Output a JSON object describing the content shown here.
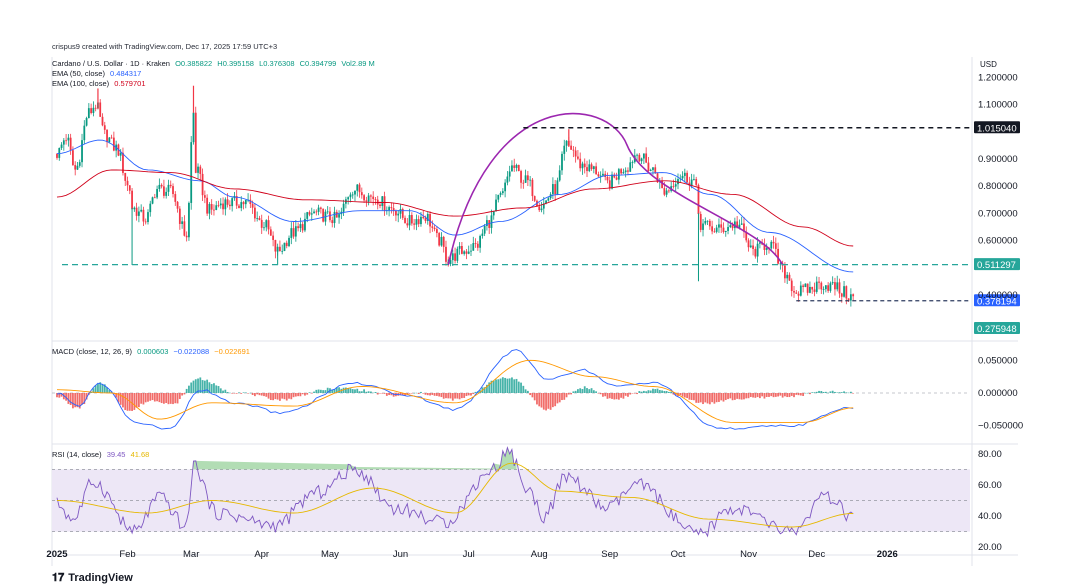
{
  "attribution": "crispus9 created with TradingView.com, Dec 17, 2025 17:59 UTC+3",
  "symbol_line": {
    "name": "Cardano / U.S. Dollar · 1D · Kraken",
    "open": "O0.385822",
    "high": "H0.395158",
    "low": "L0.376308",
    "close": "C0.394799",
    "volume": "Vol2.89 M"
  },
  "ema50": {
    "label": "EMA (50, close)",
    "value": "0.484317"
  },
  "ema100": {
    "label": "EMA (100, close)",
    "value": "0.579701"
  },
  "macd_legend": {
    "label": "MACD (close, 12, 26, 9)",
    "hist": "0.000603",
    "macd": "−0.022088",
    "signal": "−0.022691"
  },
  "rsi_legend": {
    "label": "RSI (14, close)",
    "rsi": "39.45",
    "ma": "41.68"
  },
  "logo_text": "TradingView",
  "colors": {
    "up": "#089981",
    "down": "#f23645",
    "ema50": "#2962ff",
    "ema100": "#d0021b",
    "arc": "#9c27b0",
    "dash_dark": "#131722",
    "dash_teal": "#26a69a",
    "macd": "#2962ff",
    "signal": "#ff9800",
    "rsi": "#7e57c2",
    "rsi_ma": "#e6b800",
    "rsi_band": "#ede7f6"
  },
  "chart_data": [
    {
      "type": "candlestick",
      "currency": "USD",
      "interval": "1D",
      "exchange": "Kraken",
      "x_labels": [
        "2025",
        "Feb",
        "Mar",
        "Apr",
        "May",
        "Jun",
        "Jul",
        "Aug",
        "Sep",
        "Oct",
        "Nov",
        "Dec",
        "2026"
      ],
      "ylim": [
        0.3,
        1.25
      ],
      "y_ticks": [
        "1.200000",
        "1.100000",
        "1.000000",
        "0.900000",
        "0.800000",
        "0.700000",
        "0.600000",
        "0.500000",
        "0.400000",
        "0.300000"
      ],
      "close_anchors": [
        {
          "date": "2025-01-01",
          "close": 0.92
        },
        {
          "date": "2025-01-05",
          "close": 0.98
        },
        {
          "date": "2025-01-09",
          "close": 0.86
        },
        {
          "date": "2025-01-15",
          "close": 1.07
        },
        {
          "date": "2025-01-18",
          "close": 1.1
        },
        {
          "date": "2025-01-22",
          "close": 0.99
        },
        {
          "date": "2025-01-27",
          "close": 0.94
        },
        {
          "date": "2025-02-02",
          "close": 0.79
        },
        {
          "date": "2025-02-03",
          "close": 0.72
        },
        {
          "date": "2025-02-09",
          "close": 0.68
        },
        {
          "date": "2025-02-14",
          "close": 0.79
        },
        {
          "date": "2025-02-20",
          "close": 0.78
        },
        {
          "date": "2025-02-27",
          "close": 0.62
        },
        {
          "date": "2025-03-02",
          "close": 1.07
        },
        {
          "date": "2025-03-03",
          "close": 0.86
        },
        {
          "date": "2025-03-09",
          "close": 0.71
        },
        {
          "date": "2025-03-15",
          "close": 0.74
        },
        {
          "date": "2025-03-25",
          "close": 0.74
        },
        {
          "date": "2025-04-02",
          "close": 0.66
        },
        {
          "date": "2025-04-08",
          "close": 0.56
        },
        {
          "date": "2025-04-15",
          "close": 0.63
        },
        {
          "date": "2025-04-24",
          "close": 0.7
        },
        {
          "date": "2025-05-04",
          "close": 0.68
        },
        {
          "date": "2025-05-11",
          "close": 0.79
        },
        {
          "date": "2025-05-20",
          "close": 0.76
        },
        {
          "date": "2025-05-28",
          "close": 0.72
        },
        {
          "date": "2025-06-05",
          "close": 0.67
        },
        {
          "date": "2025-06-12",
          "close": 0.69
        },
        {
          "date": "2025-06-18",
          "close": 0.6
        },
        {
          "date": "2025-06-22",
          "close": 0.53
        },
        {
          "date": "2025-06-28",
          "close": 0.56
        },
        {
          "date": "2025-07-04",
          "close": 0.58
        },
        {
          "date": "2025-07-10",
          "close": 0.67
        },
        {
          "date": "2025-07-15",
          "close": 0.76
        },
        {
          "date": "2025-07-20",
          "close": 0.87
        },
        {
          "date": "2025-07-26",
          "close": 0.82
        },
        {
          "date": "2025-08-02",
          "close": 0.73
        },
        {
          "date": "2025-08-08",
          "close": 0.79
        },
        {
          "date": "2025-08-13",
          "close": 0.95
        },
        {
          "date": "2025-08-15",
          "close": 0.94
        },
        {
          "date": "2025-08-19",
          "close": 0.88
        },
        {
          "date": "2025-08-25",
          "close": 0.86
        },
        {
          "date": "2025-08-31",
          "close": 0.81
        },
        {
          "date": "2025-09-08",
          "close": 0.87
        },
        {
          "date": "2025-09-13",
          "close": 0.92
        },
        {
          "date": "2025-09-20",
          "close": 0.86
        },
        {
          "date": "2025-09-25",
          "close": 0.78
        },
        {
          "date": "2025-10-02",
          "close": 0.84
        },
        {
          "date": "2025-10-08",
          "close": 0.82
        },
        {
          "date": "2025-10-11",
          "close": 0.66
        },
        {
          "date": "2025-10-18",
          "close": 0.64
        },
        {
          "date": "2025-10-27",
          "close": 0.66
        },
        {
          "date": "2025-11-03",
          "close": 0.56
        },
        {
          "date": "2025-11-10",
          "close": 0.59
        },
        {
          "date": "2025-11-17",
          "close": 0.48
        },
        {
          "date": "2025-11-22",
          "close": 0.41
        },
        {
          "date": "2025-11-28",
          "close": 0.42
        },
        {
          "date": "2025-12-03",
          "close": 0.44
        },
        {
          "date": "2025-12-09",
          "close": 0.43
        },
        {
          "date": "2025-12-12",
          "close": 0.41
        },
        {
          "date": "2025-12-17",
          "close": 0.39
        }
      ],
      "wick_spikes": [
        {
          "date": "2025-02-03",
          "low": 0.51
        },
        {
          "date": "2025-03-02",
          "high": 1.17
        },
        {
          "date": "2025-01-19",
          "high": 1.16
        },
        {
          "date": "2025-04-08",
          "low": 0.51
        },
        {
          "date": "2025-06-22",
          "low": 0.51
        },
        {
          "date": "2025-10-10",
          "low": 0.45
        },
        {
          "date": "2025-08-14",
          "high": 1.01
        }
      ],
      "ema50_anchors": [
        {
          "date": "2025-01-01",
          "value": 0.92
        },
        {
          "date": "2025-01-20",
          "value": 0.97
        },
        {
          "date": "2025-02-10",
          "value": 0.86
        },
        {
          "date": "2025-03-05",
          "value": 0.82
        },
        {
          "date": "2025-03-20",
          "value": 0.76
        },
        {
          "date": "2025-04-15",
          "value": 0.67
        },
        {
          "date": "2025-05-15",
          "value": 0.71
        },
        {
          "date": "2025-06-05",
          "value": 0.71
        },
        {
          "date": "2025-06-25",
          "value": 0.62
        },
        {
          "date": "2025-07-15",
          "value": 0.67
        },
        {
          "date": "2025-08-10",
          "value": 0.77
        },
        {
          "date": "2025-09-01",
          "value": 0.84
        },
        {
          "date": "2025-09-25",
          "value": 0.85
        },
        {
          "date": "2025-10-15",
          "value": 0.77
        },
        {
          "date": "2025-11-10",
          "value": 0.63
        },
        {
          "date": "2025-12-17",
          "value": 0.484317
        }
      ],
      "ema100_anchors": [
        {
          "date": "2025-01-01",
          "value": 0.76
        },
        {
          "date": "2025-01-25",
          "value": 0.86
        },
        {
          "date": "2025-02-20",
          "value": 0.85
        },
        {
          "date": "2025-03-20",
          "value": 0.79
        },
        {
          "date": "2025-04-20",
          "value": 0.75
        },
        {
          "date": "2025-05-25",
          "value": 0.74
        },
        {
          "date": "2025-06-25",
          "value": 0.69
        },
        {
          "date": "2025-07-25",
          "value": 0.72
        },
        {
          "date": "2025-08-25",
          "value": 0.79
        },
        {
          "date": "2025-09-25",
          "value": 0.82
        },
        {
          "date": "2025-10-25",
          "value": 0.77
        },
        {
          "date": "2025-11-25",
          "value": 0.65
        },
        {
          "date": "2025-12-17",
          "value": 0.579701
        }
      ],
      "levels": [
        {
          "label": "1.015040",
          "value": 1.01504,
          "style": "dashed-dark",
          "from": "2025-07-25"
        },
        {
          "label": "0.511297",
          "value": 0.511297,
          "style": "dashed-teal",
          "from": "2025-01-01"
        },
        {
          "label": "0.378194",
          "value": 0.378194,
          "style": "dashed-navy",
          "from": "2025-11-22"
        },
        {
          "label": "0.275948",
          "value": 0.275948,
          "style": "label-only"
        }
      ],
      "arc": {
        "start": {
          "date": "2025-06-22",
          "value": 0.51
        },
        "peak": {
          "date": "2025-08-22",
          "value": 0.97
        },
        "end": {
          "date": "2025-11-16",
          "value": 0.51
        }
      }
    },
    {
      "type": "line",
      "name": "MACD (close, 12, 26, 9)",
      "ylim": [
        -0.075,
        0.075
      ],
      "y_ticks": [
        "0.050000",
        "0.000000",
        "−0.050000"
      ],
      "macd_anchors": [
        {
          "date": "2025-01-01",
          "value": 0.0
        },
        {
          "date": "2025-01-10",
          "value": -0.02
        },
        {
          "date": "2025-01-20",
          "value": 0.015
        },
        {
          "date": "2025-02-05",
          "value": -0.045
        },
        {
          "date": "2025-02-20",
          "value": -0.055
        },
        {
          "date": "2025-03-05",
          "value": 0.005
        },
        {
          "date": "2025-03-20",
          "value": -0.015
        },
        {
          "date": "2025-04-10",
          "value": -0.03
        },
        {
          "date": "2025-05-12",
          "value": 0.015
        },
        {
          "date": "2025-06-05",
          "value": -0.005
        },
        {
          "date": "2025-06-25",
          "value": -0.025
        },
        {
          "date": "2025-07-22",
          "value": 0.065
        },
        {
          "date": "2025-08-05",
          "value": 0.02
        },
        {
          "date": "2025-08-20",
          "value": 0.035
        },
        {
          "date": "2025-09-05",
          "value": 0.01
        },
        {
          "date": "2025-09-20",
          "value": 0.015
        },
        {
          "date": "2025-10-20",
          "value": -0.055
        },
        {
          "date": "2025-11-20",
          "value": -0.05
        },
        {
          "date": "2025-12-17",
          "value": -0.022088
        }
      ],
      "signal_anchors": [
        {
          "date": "2025-01-01",
          "value": 0.005
        },
        {
          "date": "2025-01-25",
          "value": 0.0
        },
        {
          "date": "2025-02-15",
          "value": -0.04
        },
        {
          "date": "2025-03-10",
          "value": -0.015
        },
        {
          "date": "2025-04-15",
          "value": -0.02
        },
        {
          "date": "2025-05-15",
          "value": 0.01
        },
        {
          "date": "2025-06-25",
          "value": -0.015
        },
        {
          "date": "2025-07-28",
          "value": 0.05
        },
        {
          "date": "2025-08-25",
          "value": 0.025
        },
        {
          "date": "2025-09-20",
          "value": 0.01
        },
        {
          "date": "2025-10-25",
          "value": -0.045
        },
        {
          "date": "2025-11-25",
          "value": -0.045
        },
        {
          "date": "2025-12-17",
          "value": -0.022691
        }
      ]
    },
    {
      "type": "line",
      "name": "RSI (14, close)",
      "ylim": [
        15,
        85
      ],
      "y_ticks": [
        "80.00",
        "60.00",
        "40.00",
        "20.00"
      ],
      "band": [
        30,
        70
      ],
      "midline": 50,
      "rsi_anchors": [
        {
          "date": "2025-01-01",
          "value": 48
        },
        {
          "date": "2025-01-08",
          "value": 38
        },
        {
          "date": "2025-01-17",
          "value": 62
        },
        {
          "date": "2025-02-04",
          "value": 30
        },
        {
          "date": "2025-02-15",
          "value": 52
        },
        {
          "date": "2025-02-27",
          "value": 33
        },
        {
          "date": "2025-03-02",
          "value": 73
        },
        {
          "date": "2025-03-12",
          "value": 42
        },
        {
          "date": "2025-04-07",
          "value": 34
        },
        {
          "date": "2025-04-25",
          "value": 55
        },
        {
          "date": "2025-05-12",
          "value": 70
        },
        {
          "date": "2025-05-30",
          "value": 45
        },
        {
          "date": "2025-06-20",
          "value": 36
        },
        {
          "date": "2025-07-12",
          "value": 70
        },
        {
          "date": "2025-07-18",
          "value": 82
        },
        {
          "date": "2025-07-28",
          "value": 55
        },
        {
          "date": "2025-08-03",
          "value": 40
        },
        {
          "date": "2025-08-13",
          "value": 65
        },
        {
          "date": "2025-08-31",
          "value": 45
        },
        {
          "date": "2025-09-13",
          "value": 60
        },
        {
          "date": "2025-10-10",
          "value": 28
        },
        {
          "date": "2025-10-25",
          "value": 45
        },
        {
          "date": "2025-11-20",
          "value": 30
        },
        {
          "date": "2025-12-05",
          "value": 52
        },
        {
          "date": "2025-12-17",
          "value": 39.45
        }
      ],
      "rsi_ma_anchors": [
        {
          "date": "2025-01-01",
          "value": 50
        },
        {
          "date": "2025-02-10",
          "value": 42
        },
        {
          "date": "2025-03-10",
          "value": 50
        },
        {
          "date": "2025-04-15",
          "value": 42
        },
        {
          "date": "2025-05-20",
          "value": 58
        },
        {
          "date": "2025-06-25",
          "value": 42
        },
        {
          "date": "2025-07-20",
          "value": 74
        },
        {
          "date": "2025-08-10",
          "value": 56
        },
        {
          "date": "2025-09-10",
          "value": 52
        },
        {
          "date": "2025-10-15",
          "value": 38
        },
        {
          "date": "2025-11-20",
          "value": 33
        },
        {
          "date": "2025-12-17",
          "value": 41.68
        }
      ]
    }
  ]
}
